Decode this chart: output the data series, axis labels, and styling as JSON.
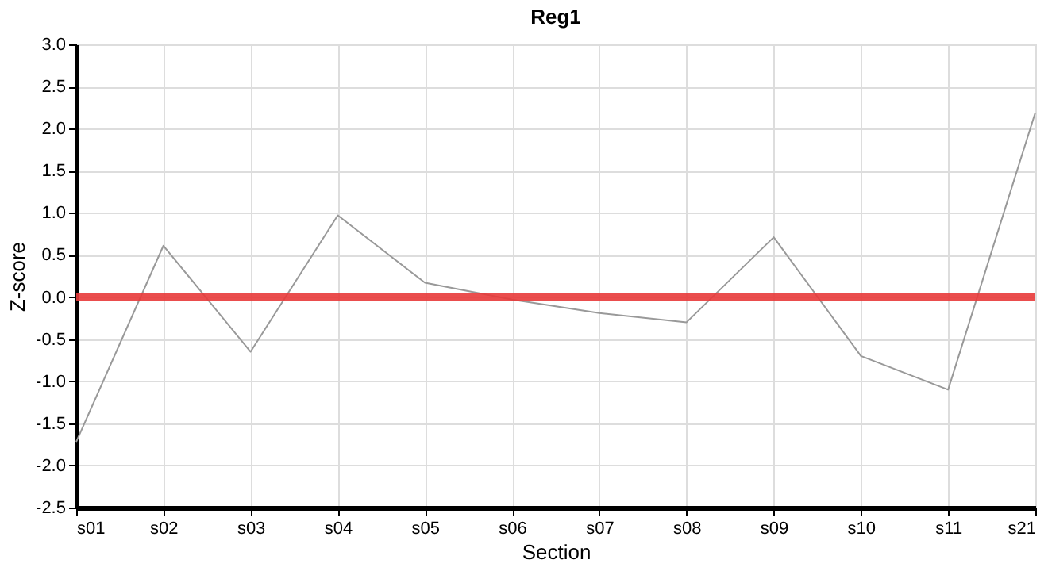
{
  "chart_data": {
    "type": "line",
    "title": "Reg1",
    "xlabel": "Section",
    "ylabel": "Z-score",
    "categories": [
      "s01",
      "s02",
      "s03",
      "s04",
      "s05",
      "s06",
      "s07",
      "s08",
      "s09",
      "s10",
      "s11",
      "s21"
    ],
    "series": [
      {
        "color": "#999999",
        "values": [
          -1.72,
          0.61,
          -0.65,
          0.97,
          0.17,
          -0.03,
          -0.19,
          -0.3,
          0.71,
          -0.7,
          -1.1,
          2.19
        ]
      }
    ],
    "ylim": [
      -2.5,
      3.0
    ],
    "yticks": [
      {
        "value": -2.5,
        "label": "-2.5"
      },
      {
        "value": -2,
        "label": "-2.0"
      },
      {
        "value": -1.5,
        "label": "-1.5"
      },
      {
        "value": -1,
        "label": "-1.0"
      },
      {
        "value": -0.5,
        "label": "-0.5"
      },
      {
        "value": 0,
        "label": "0.0"
      },
      {
        "value": 0.5,
        "label": "0.5"
      },
      {
        "value": 1,
        "label": "1.0"
      },
      {
        "value": 1.5,
        "label": "1.5"
      },
      {
        "value": 2,
        "label": "2.0"
      },
      {
        "value": 2.5,
        "label": "2.5"
      },
      {
        "value": 3,
        "label": "3.0"
      }
    ],
    "ref_lines": [
      {
        "axis": "y",
        "value": 0,
        "color": "#e83a3a"
      }
    ],
    "grid": true,
    "marker": "none",
    "line_style": "solid"
  }
}
